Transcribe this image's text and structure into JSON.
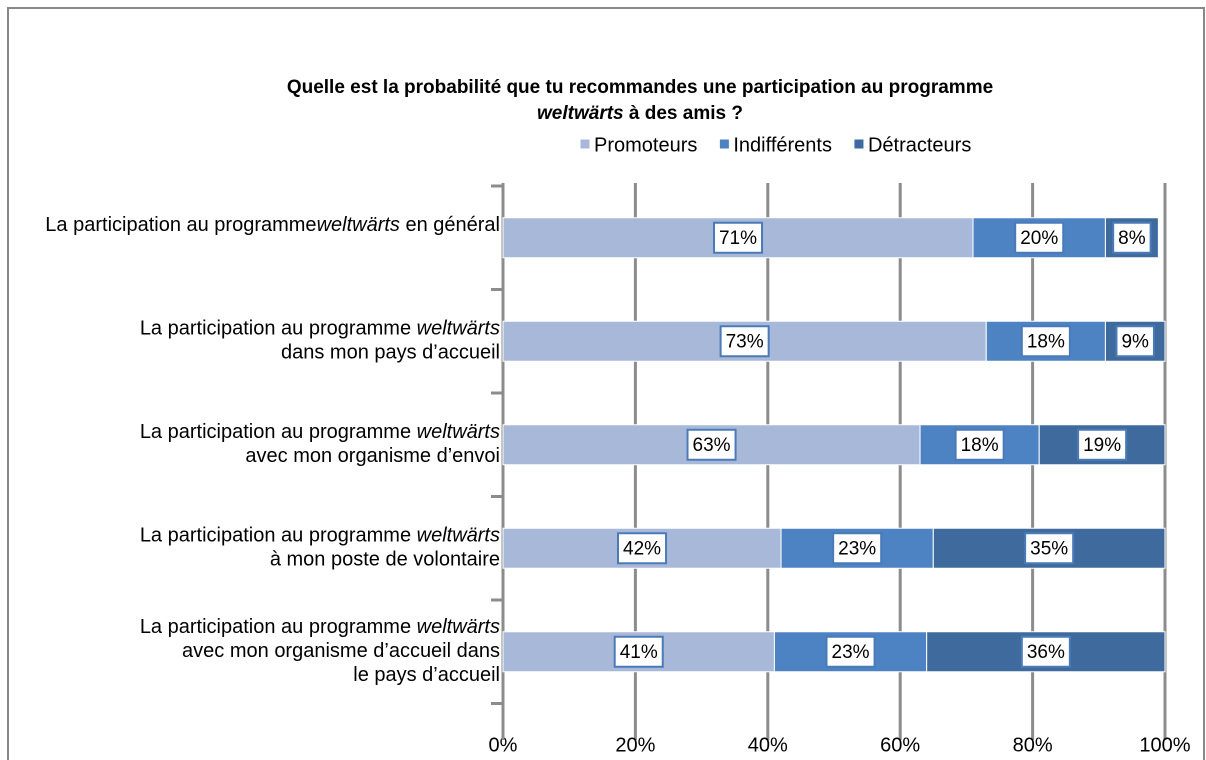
{
  "chart_data": {
    "type": "stacked_barh",
    "title_parts": [
      "Quelle est la probabilité que tu recommandes une participation au programme",
      "weltwärts",
      "à des amis ?"
    ],
    "emphasis": "weltwärts",
    "categories": [
      "La participation au programme\nweltwärts en général",
      "La participation au programme weltwärts\ndans mon pays d’accueil",
      "La participation au programme weltwärts\navec mon organisme d’envoi",
      "La participation au programme weltwärts\nà mon poste de volontaire",
      "La participation au programme weltwärts\navec mon organisme d’accueil dans\nle pays d’accueil"
    ],
    "series": [
      {
        "name": "Promoteurs",
        "color": "#a7b8d8",
        "values": [
          71,
          73,
          63,
          42,
          41
        ],
        "value_labels": [
          "71%",
          "73%",
          "63%",
          "42%",
          "41%"
        ]
      },
      {
        "name": "Indifférents",
        "color": "#4d82c3",
        "values": [
          20,
          18,
          18,
          23,
          23
        ],
        "value_labels": [
          "20%",
          "18%",
          "18%",
          "23%",
          "23%"
        ]
      },
      {
        "name": "Détracteurs",
        "color": "#3e6a9e",
        "values": [
          8,
          9,
          19,
          35,
          36
        ],
        "value_labels": [
          "8%",
          "9%",
          "19%",
          "35%",
          "36%"
        ]
      }
    ],
    "xlim": [
      0,
      100
    ],
    "xticks": [
      {
        "value": 0,
        "label": "0%"
      },
      {
        "value": 20,
        "label": "20%"
      },
      {
        "value": 40,
        "label": "40%"
      },
      {
        "value": 60,
        "label": "60%"
      },
      {
        "value": 80,
        "label": "80%"
      },
      {
        "value": 100,
        "label": "100%"
      }
    ],
    "grid": true,
    "legend": "top"
  }
}
